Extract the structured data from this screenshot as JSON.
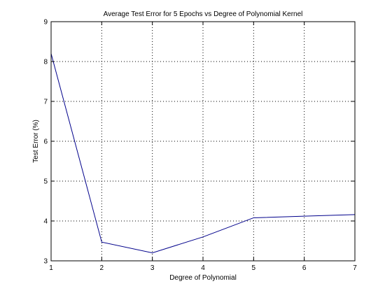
{
  "chart_data": {
    "type": "line",
    "title": "Average Test Error for 5 Epochs vs Degree of Polynomial Kernel",
    "xlabel": "Degree of Polynomial",
    "ylabel": "Test Error (%)",
    "xlim": [
      1,
      7
    ],
    "ylim": [
      3,
      9
    ],
    "xticks": [
      1,
      2,
      3,
      4,
      5,
      6,
      7
    ],
    "yticks": [
      3,
      4,
      5,
      6,
      7,
      8,
      9
    ],
    "grid": true,
    "legend": "none",
    "series": [
      {
        "color": "#00008b",
        "x": [
          1,
          2,
          3,
          4,
          5,
          6,
          7
        ],
        "y": [
          8.2,
          3.47,
          3.2,
          3.6,
          4.08,
          4.12,
          4.16
        ]
      }
    ]
  }
}
